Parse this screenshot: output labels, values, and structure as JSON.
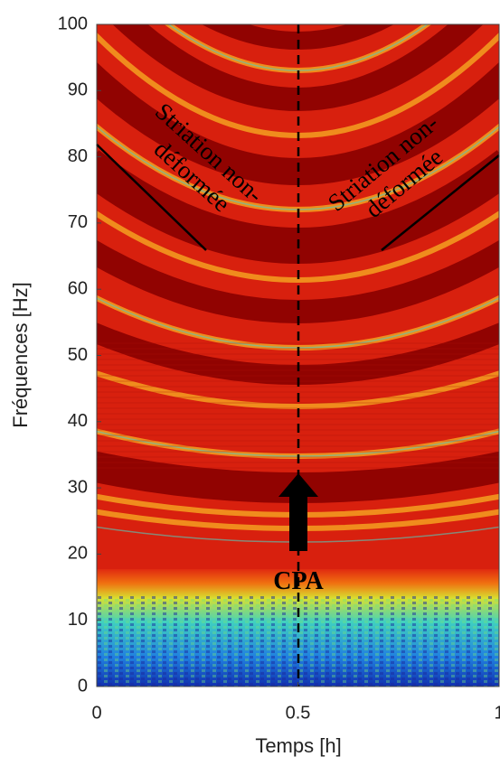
{
  "chart_data": {
    "type": "spectrogram",
    "xlabel": "Temps [h]",
    "ylabel": "Fréquences [Hz]",
    "xlim": [
      0,
      1
    ],
    "ylim": [
      0,
      100
    ],
    "xticks": [
      0,
      0.5,
      1
    ],
    "yticks": [
      0,
      10,
      20,
      30,
      40,
      50,
      60,
      70,
      80,
      90,
      100
    ],
    "annotations": [
      {
        "lines": [
          "Striation non-",
          "déformée"
        ]
      },
      {
        "lines": [
          "Striation non-",
          "déformée"
        ]
      }
    ],
    "arrow_label": "CPA"
  }
}
